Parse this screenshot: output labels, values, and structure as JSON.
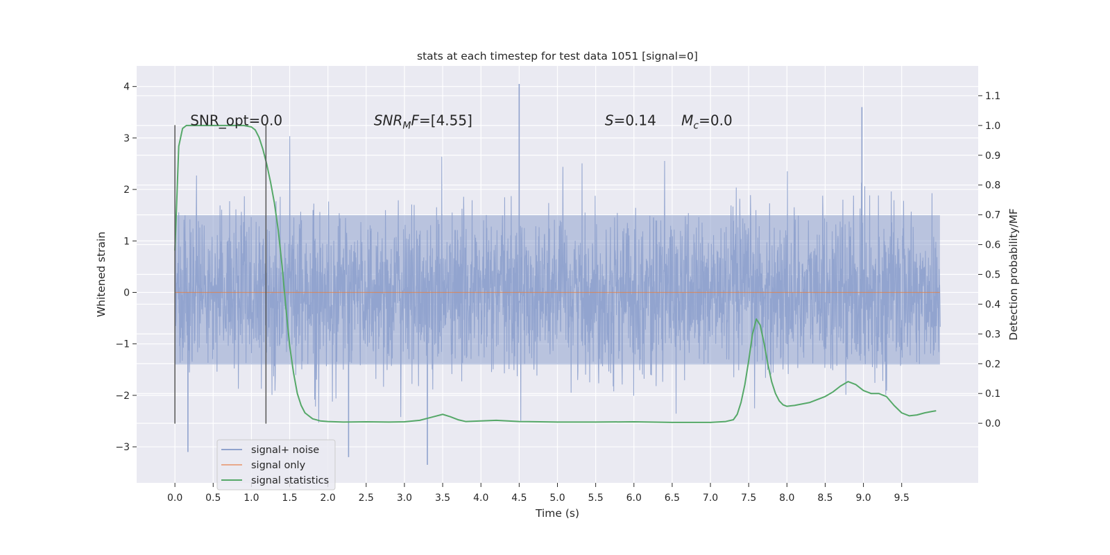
{
  "chart_data": {
    "type": "line",
    "title": "stats at each timestep for test data 1051 [signal=0]",
    "xlabel": "Time (s)",
    "ylabel_left": "Whitened strain",
    "ylabel_right": "Detection probability/MF",
    "xlim": [
      -0.5,
      10.5
    ],
    "ylim_left": [
      -3.7,
      4.4
    ],
    "ylim_right": [
      -0.2,
      1.2
    ],
    "x_ticks": [
      "0.0",
      "0.5",
      "1.0",
      "1.5",
      "2.0",
      "2.5",
      "3.0",
      "3.5",
      "4.0",
      "4.5",
      "5.0",
      "5.5",
      "6.0",
      "6.5",
      "7.0",
      "7.5",
      "8.0",
      "8.5",
      "9.0",
      "9.5"
    ],
    "y_left_ticks": [
      "−3",
      "−2",
      "−1",
      "0",
      "1",
      "2",
      "3",
      "4"
    ],
    "y_right_ticks": [
      "0.0",
      "0.1",
      "0.2",
      "0.3",
      "0.4",
      "0.5",
      "0.6",
      "0.7",
      "0.8",
      "0.9",
      "1.0",
      "1.1"
    ],
    "grid": true,
    "legend_position": "lower-left",
    "series": [
      {
        "name": "signal+ noise",
        "axis": "left",
        "color": "#8fa2cd",
        "description_range": [
          -3.4,
          4.1
        ],
        "noise_amplitude_sigma": 0.75,
        "peaks": [
          {
            "x": 4.5,
            "y": 4.05
          },
          {
            "x": 8.98,
            "y": 3.6
          },
          {
            "x": 3.3,
            "y": -3.35
          },
          {
            "x": 2.27,
            "y": -3.2
          },
          {
            "x": 0.17,
            "y": -3.1
          }
        ]
      },
      {
        "name": "signal only",
        "axis": "left",
        "color": "#dd8452",
        "x": [
          0.0,
          10.0
        ],
        "y": [
          0.0,
          0.0
        ]
      },
      {
        "name": "signal statistics",
        "axis": "right",
        "color": "#55a868",
        "x": [
          0.0,
          0.05,
          0.1,
          0.15,
          0.2,
          0.3,
          0.4,
          0.5,
          0.6,
          0.7,
          0.8,
          0.9,
          1.0,
          1.05,
          1.1,
          1.15,
          1.2,
          1.25,
          1.3,
          1.35,
          1.4,
          1.45,
          1.5,
          1.55,
          1.6,
          1.65,
          1.7,
          1.8,
          1.9,
          2.0,
          2.2,
          2.5,
          2.8,
          3.0,
          3.2,
          3.35,
          3.5,
          3.6,
          3.7,
          3.8,
          4.0,
          4.2,
          4.5,
          5.0,
          5.5,
          6.0,
          6.5,
          7.0,
          7.2,
          7.3,
          7.35,
          7.4,
          7.45,
          7.5,
          7.55,
          7.6,
          7.65,
          7.7,
          7.75,
          7.8,
          7.85,
          7.9,
          7.95,
          8.0,
          8.1,
          8.2,
          8.3,
          8.4,
          8.5,
          8.6,
          8.7,
          8.8,
          8.9,
          9.0,
          9.1,
          9.2,
          9.3,
          9.4,
          9.5,
          9.6,
          9.7,
          9.8,
          9.9,
          9.95
        ],
        "y": [
          0.58,
          0.93,
          0.99,
          1.0,
          1.0,
          1.0,
          1.0,
          1.0,
          1.0,
          1.0,
          1.0,
          1.0,
          0.995,
          0.985,
          0.96,
          0.92,
          0.87,
          0.81,
          0.74,
          0.65,
          0.53,
          0.39,
          0.26,
          0.17,
          0.1,
          0.06,
          0.035,
          0.015,
          0.008,
          0.006,
          0.004,
          0.005,
          0.004,
          0.005,
          0.01,
          0.02,
          0.03,
          0.022,
          0.012,
          0.006,
          0.008,
          0.01,
          0.006,
          0.004,
          0.004,
          0.005,
          0.003,
          0.003,
          0.006,
          0.012,
          0.03,
          0.07,
          0.13,
          0.21,
          0.3,
          0.35,
          0.33,
          0.27,
          0.2,
          0.14,
          0.1,
          0.075,
          0.062,
          0.057,
          0.06,
          0.065,
          0.07,
          0.08,
          0.09,
          0.105,
          0.125,
          0.14,
          0.13,
          0.11,
          0.1,
          0.1,
          0.09,
          0.06,
          0.035,
          0.025,
          0.028,
          0.035,
          0.04,
          0.042
        ]
      }
    ],
    "vertical_lines": [
      {
        "x": 0.0,
        "y_range": [
          -2.55,
          3.25
        ],
        "color": "#555555"
      },
      {
        "x": 1.19,
        "y_range": [
          -2.55,
          3.25
        ],
        "color": "#555555"
      }
    ],
    "annotations": [
      {
        "key": "snr_opt",
        "text": "SNR_opt=0.0",
        "x": 0.2,
        "y": 3.3
      },
      {
        "key": "snr_mf",
        "text": "SNR_{M}F=[4.55]",
        "x": 2.6,
        "y": 3.3
      },
      {
        "key": "s",
        "text": "S=0.14",
        "x": 5.62,
        "y": 3.3
      },
      {
        "key": "mc",
        "text": "M_c=0.0",
        "x": 6.62,
        "y": 3.3
      }
    ]
  },
  "legend": {
    "items": [
      {
        "label": "signal+ noise",
        "color": "#8fa2cd"
      },
      {
        "label": "signal only",
        "color": "#e8a88a"
      },
      {
        "label": "signal statistics",
        "color": "#55a868"
      }
    ]
  },
  "colors": {
    "plot_background": "#eaeaf2",
    "grid": "#ffffff",
    "text": "#262626"
  }
}
